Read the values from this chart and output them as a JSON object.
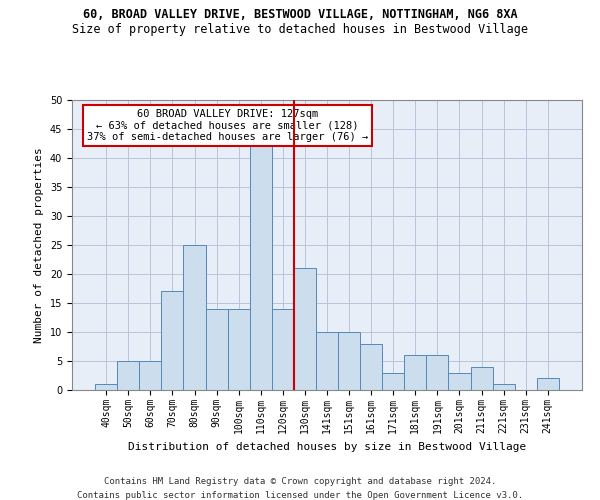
{
  "title": "60, BROAD VALLEY DRIVE, BESTWOOD VILLAGE, NOTTINGHAM, NG6 8XA",
  "subtitle": "Size of property relative to detached houses in Bestwood Village",
  "xlabel": "Distribution of detached houses by size in Bestwood Village",
  "ylabel": "Number of detached properties",
  "categories": [
    "40sqm",
    "50sqm",
    "60sqm",
    "70sqm",
    "80sqm",
    "90sqm",
    "100sqm",
    "110sqm",
    "120sqm",
    "130sqm",
    "141sqm",
    "151sqm",
    "161sqm",
    "171sqm",
    "181sqm",
    "191sqm",
    "201sqm",
    "211sqm",
    "221sqm",
    "231sqm",
    "241sqm"
  ],
  "values": [
    1,
    5,
    5,
    17,
    25,
    14,
    14,
    42,
    14,
    21,
    10,
    10,
    8,
    3,
    6,
    6,
    3,
    4,
    1,
    0,
    2
  ],
  "bar_color": "#ccdded",
  "bar_edge_color": "#5588bb",
  "bar_width": 1.0,
  "vline_x": 8.5,
  "vline_color": "#cc0000",
  "annotation_text": "60 BROAD VALLEY DRIVE: 127sqm\n← 63% of detached houses are smaller (128)\n37% of semi-detached houses are larger (76) →",
  "annotation_box_color": "#cc0000",
  "ylim": [
    0,
    50
  ],
  "yticks": [
    0,
    5,
    10,
    15,
    20,
    25,
    30,
    35,
    40,
    45,
    50
  ],
  "background_color": "#ffffff",
  "axes_bg_color": "#e8eef8",
  "grid_color": "#b8c4d8",
  "footer_line1": "Contains HM Land Registry data © Crown copyright and database right 2024.",
  "footer_line2": "Contains public sector information licensed under the Open Government Licence v3.0.",
  "title_fontsize": 8.5,
  "subtitle_fontsize": 8.5,
  "axis_label_fontsize": 8,
  "tick_fontsize": 7,
  "annotation_fontsize": 7.5,
  "footer_fontsize": 6.5
}
